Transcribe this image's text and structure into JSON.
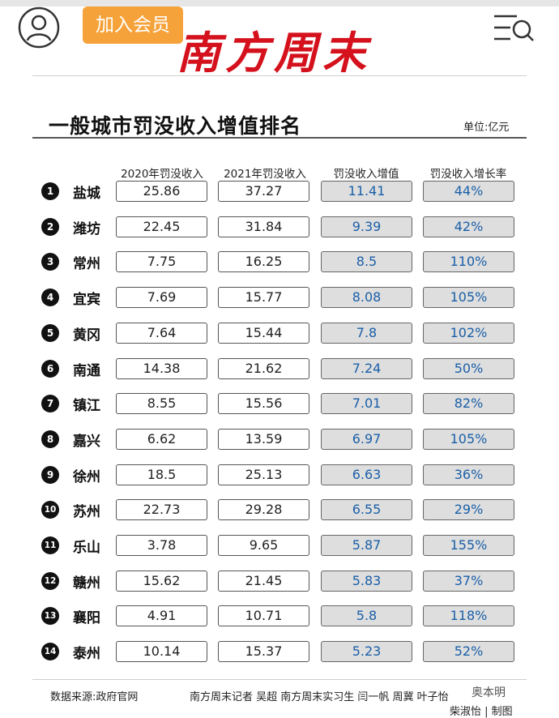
{
  "header": {
    "vip_label": "加入会员",
    "logo_text": "南方周末"
  },
  "table": {
    "title": "一般城市罚没收入增值排名",
    "unit": "单位:亿元",
    "columns": [
      "2020年罚没收入",
      "2021年罚没收入",
      "罚没收入增值",
      "罚没收入增长率"
    ],
    "rows": [
      {
        "rank": "1",
        "city": "盐城",
        "y2020": "25.86",
        "y2021": "37.27",
        "increase": "11.41",
        "rate": "44%"
      },
      {
        "rank": "2",
        "city": "潍坊",
        "y2020": "22.45",
        "y2021": "31.84",
        "increase": "9.39",
        "rate": "42%"
      },
      {
        "rank": "3",
        "city": "常州",
        "y2020": "7.75",
        "y2021": "16.25",
        "increase": "8.5",
        "rate": "110%"
      },
      {
        "rank": "4",
        "city": "宜宾",
        "y2020": "7.69",
        "y2021": "15.77",
        "increase": "8.08",
        "rate": "105%"
      },
      {
        "rank": "5",
        "city": "黄冈",
        "y2020": "7.64",
        "y2021": "15.44",
        "increase": "7.8",
        "rate": "102%"
      },
      {
        "rank": "6",
        "city": "南通",
        "y2020": "14.38",
        "y2021": "21.62",
        "increase": "7.24",
        "rate": "50%"
      },
      {
        "rank": "7",
        "city": "镇江",
        "y2020": "8.55",
        "y2021": "15.56",
        "increase": "7.01",
        "rate": "82%"
      },
      {
        "rank": "8",
        "city": "嘉兴",
        "y2020": "6.62",
        "y2021": "13.59",
        "increase": "6.97",
        "rate": "105%"
      },
      {
        "rank": "9",
        "city": "徐州",
        "y2020": "18.5",
        "y2021": "25.13",
        "increase": "6.63",
        "rate": "36%"
      },
      {
        "rank": "10",
        "city": "苏州",
        "y2020": "22.73",
        "y2021": "29.28",
        "increase": "6.55",
        "rate": "29%"
      },
      {
        "rank": "11",
        "city": "乐山",
        "y2020": "3.78",
        "y2021": "9.65",
        "increase": "5.87",
        "rate": "155%"
      },
      {
        "rank": "12",
        "city": "赣州",
        "y2020": "15.62",
        "y2021": "21.45",
        "increase": "5.83",
        "rate": "37%"
      },
      {
        "rank": "13",
        "city": "襄阳",
        "y2020": "4.91",
        "y2021": "10.71",
        "increase": "5.8",
        "rate": "118%"
      },
      {
        "rank": "14",
        "city": "泰州",
        "y2020": "10.14",
        "y2021": "15.37",
        "increase": "5.23",
        "rate": "52%"
      }
    ]
  },
  "footer": {
    "source": "数据来源:政府官网",
    "credits": "南方周末记者 吴超 南方周末实习生 闫一帆 周冀 叶子怡",
    "credits_line2": "柴淑怡 | 制图",
    "watermark": "奥本明"
  }
}
